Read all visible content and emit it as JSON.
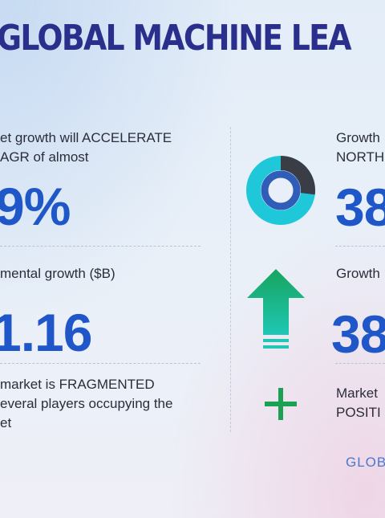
{
  "title": "GLOBAL MACHINE LEA",
  "left": {
    "growth_line1": "et growth will ACCELERATE",
    "growth_line2": "AGR of almost",
    "growth_value": "9%",
    "incremental_label": "mental growth ($B)",
    "incremental_value": "1.16",
    "fragment_line1": "market is FRAGMENTED",
    "fragment_line2": "everal players occupying the",
    "fragment_line3": "et"
  },
  "right": {
    "region_line1": "Growth",
    "region_line2": "NORTH",
    "region_value": "38",
    "yoy_label": "Growth",
    "yoy_value": "38",
    "position_line1": "Market",
    "position_line2": "POSITI"
  },
  "logo_text": "GLOB",
  "donut": {
    "dark_fraction": 0.27,
    "colors": {
      "ring": "#1ec8d8",
      "dark": "#3a3d46",
      "inner": "#2f5db8"
    }
  },
  "colors": {
    "title": "#2a2f8c",
    "accent_blue": "#1f57c9",
    "arrow": "#16a463",
    "plus": "#1aa152"
  },
  "icons": [
    "donut-chart-icon",
    "up-arrow-icon",
    "plus-icon"
  ]
}
